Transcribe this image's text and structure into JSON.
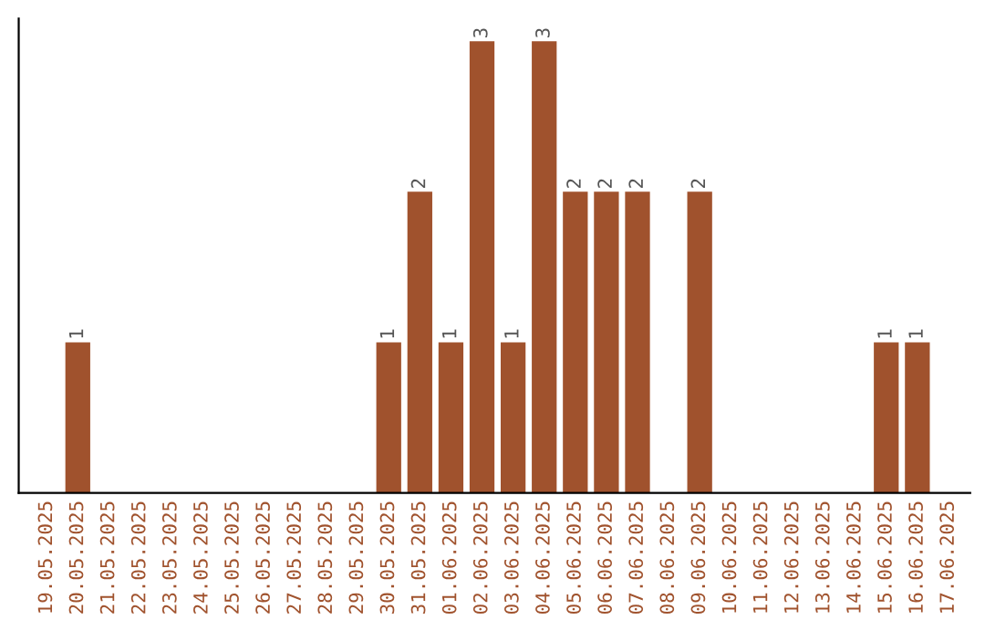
{
  "chart_data": {
    "type": "bar",
    "categories": [
      "19.05.2025",
      "20.05.2025",
      "21.05.2025",
      "22.05.2025",
      "23.05.2025",
      "24.05.2025",
      "25.05.2025",
      "26.05.2025",
      "27.05.2025",
      "28.05.2025",
      "29.05.2025",
      "30.05.2025",
      "31.05.2025",
      "01.06.2025",
      "02.06.2025",
      "03.06.2025",
      "04.06.2025",
      "05.06.2025",
      "06.06.2025",
      "07.06.2025",
      "08.06.2025",
      "09.06.2025",
      "10.06.2025",
      "11.06.2025",
      "12.06.2025",
      "13.06.2025",
      "14.06.2025",
      "15.06.2025",
      "16.06.2025",
      "17.06.2025"
    ],
    "values": [
      0,
      1,
      0,
      0,
      0,
      0,
      0,
      0,
      0,
      0,
      0,
      1,
      2,
      1,
      3,
      1,
      3,
      2,
      2,
      2,
      0,
      2,
      0,
      0,
      0,
      0,
      0,
      1,
      1,
      0
    ],
    "value_labels": [
      null,
      "1",
      null,
      null,
      null,
      null,
      null,
      null,
      null,
      null,
      null,
      "1",
      "2",
      "1",
      "3",
      "1",
      "3",
      "2",
      "2",
      "2",
      null,
      "2",
      null,
      null,
      null,
      null,
      null,
      "1",
      "1",
      null
    ],
    "color": "#a0522d",
    "tick_labels": "x",
    "grid": false,
    "legend": false
  }
}
